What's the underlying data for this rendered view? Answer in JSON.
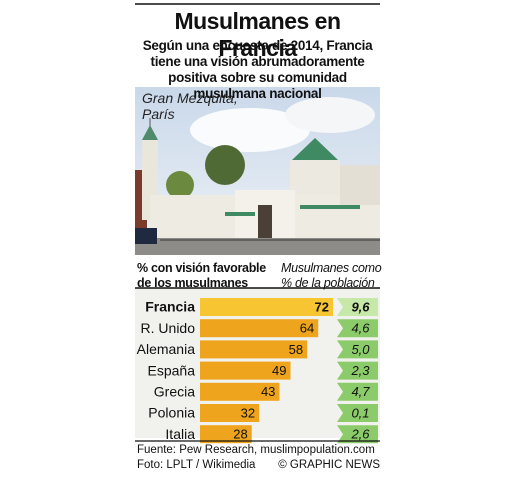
{
  "chart_data": {
    "type": "bar",
    "title": "Musulmanes en Francia",
    "subtitle": "Según una encuesta de 2014, Francia tiene una visión abrumadoramente positiva sobre su comunidad musulmana nacional",
    "photo_caption": "Gran Mezquita, París",
    "categories": [
      "Francia",
      "R. Unido",
      "Alemania",
      "España",
      "Grecia",
      "Polonia",
      "Italia"
    ],
    "series": [
      {
        "name": "% con visión favorable de los musulmanes",
        "color": "#eea41c",
        "values": [
          72,
          64,
          58,
          49,
          43,
          32,
          28
        ]
      },
      {
        "name": "Musulmanes como % de la población",
        "color": "#8ccb6a",
        "values": [
          9.6,
          4.6,
          5.0,
          2.3,
          4.7,
          0.1,
          2.6
        ],
        "value_labels": [
          "9,6",
          "4,6",
          "5,0",
          "2,3",
          "4,7",
          "0,1",
          "2,6"
        ]
      }
    ],
    "source": "Fuente: Pew Research, muslimpopulation.com",
    "credit": "Foto: LPLT / Wikimedia",
    "copyright": "© GRAPHIC NEWS"
  }
}
